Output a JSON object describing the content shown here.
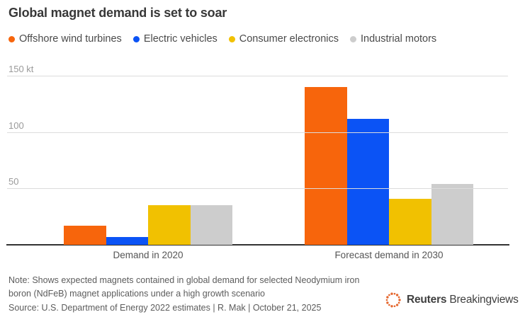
{
  "title": "Global magnet demand is set to soar",
  "chart_data": {
    "type": "bar",
    "categories": [
      "Demand in 2020",
      "Forecast demand in 2030"
    ],
    "series": [
      {
        "name": "Offshore wind turbines",
        "color": "#F7650C",
        "values": [
          17,
          140
        ]
      },
      {
        "name": "Electric vehicles",
        "color": "#0B53F5",
        "values": [
          7,
          112
        ]
      },
      {
        "name": "Consumer electronics",
        "color": "#F1C101",
        "values": [
          35,
          41
        ]
      },
      {
        "name": "Industrial motors",
        "color": "#CDCDCD",
        "values": [
          35,
          54
        ]
      }
    ],
    "unit": "kt",
    "ylim": [
      0,
      150
    ],
    "yticks": [
      {
        "label": "150 kt",
        "value": 150
      },
      {
        "label": "100",
        "value": 100
      },
      {
        "label": "50",
        "value": 50
      }
    ],
    "grid": true,
    "legend_position": "top"
  },
  "footer": {
    "note": "Note: Shows expected magnets contained in global demand for selected Neodymium iron boron (NdFeB) magnet applications under a high growth scenario",
    "source": "Source: U.S. Department of Energy 2022 estimates | R. Mak | October 21, 2025"
  },
  "branding": {
    "main": "Reuters",
    "sub": "Breakingviews",
    "logo_color": "#E5672E"
  },
  "colors": {
    "gridline": "#dcdcdc",
    "axis": "#333333",
    "title_text": "#383838",
    "tick_text": "#9a9a9a",
    "footer_text": "#5c5c5c"
  }
}
